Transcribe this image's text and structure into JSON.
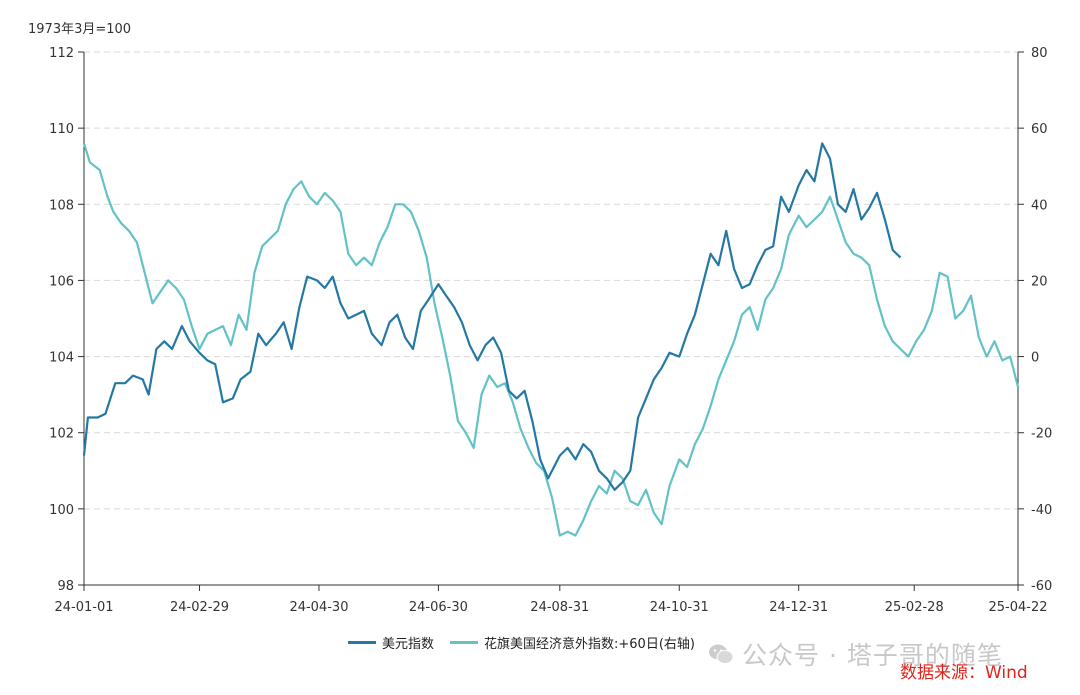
{
  "colors": {
    "usd": "#2478a3",
    "citi": "#62c2c7",
    "grid": "#d9d9d9",
    "axis": "#333333",
    "source": "#e2231a"
  },
  "unit_label": "1973年3月=100",
  "watermark": "公众号 · 塔子哥的随笔",
  "watermark_icon": "wechat-icon",
  "source_label": "数据来源：Wind",
  "chart_data": {
    "type": "line",
    "x_type": "date",
    "x_range": [
      "2024-01-01",
      "2025-04-22"
    ],
    "xticks": [
      "2024-01-01",
      "2024-02-29",
      "2024-04-30",
      "2024-06-30",
      "2024-08-31",
      "2024-10-31",
      "2024-12-31",
      "2025-02-28",
      "2025-04-22"
    ],
    "xtick_labels": [
      "24-01-01",
      "24-02-29",
      "24-04-30",
      "24-06-30",
      "24-08-31",
      "24-10-31",
      "24-12-31",
      "25-02-28",
      "25-04-22"
    ],
    "ylim_left": [
      98,
      112
    ],
    "yticks_left": [
      98,
      100,
      102,
      104,
      106,
      108,
      110,
      112
    ],
    "ylim_right": [
      -60,
      80
    ],
    "yticks_right": [
      -60,
      -40,
      -20,
      0,
      20,
      40,
      60,
      80
    ],
    "grid": "horizontal dashed",
    "legend_position": "bottom",
    "series": [
      {
        "name": "美元指数",
        "axis": "left",
        "points": [
          [
            "2024-01-01",
            101.4
          ],
          [
            "2024-01-03",
            102.4
          ],
          [
            "2024-01-08",
            102.4
          ],
          [
            "2024-01-12",
            102.5
          ],
          [
            "2024-01-17",
            103.3
          ],
          [
            "2024-01-22",
            103.3
          ],
          [
            "2024-01-26",
            103.5
          ],
          [
            "2024-01-31",
            103.4
          ],
          [
            "2024-02-03",
            103.0
          ],
          [
            "2024-02-07",
            104.2
          ],
          [
            "2024-02-11",
            104.4
          ],
          [
            "2024-02-15",
            104.2
          ],
          [
            "2024-02-20",
            104.8
          ],
          [
            "2024-02-24",
            104.4
          ],
          [
            "2024-02-29",
            104.1
          ],
          [
            "2024-03-04",
            103.9
          ],
          [
            "2024-03-08",
            103.8
          ],
          [
            "2024-03-12",
            102.8
          ],
          [
            "2024-03-17",
            102.9
          ],
          [
            "2024-03-21",
            103.4
          ],
          [
            "2024-03-26",
            103.6
          ],
          [
            "2024-03-30",
            104.6
          ],
          [
            "2024-04-03",
            104.3
          ],
          [
            "2024-04-08",
            104.6
          ],
          [
            "2024-04-12",
            104.9
          ],
          [
            "2024-04-16",
            104.2
          ],
          [
            "2024-04-20",
            105.3
          ],
          [
            "2024-04-24",
            106.1
          ],
          [
            "2024-04-29",
            106.0
          ],
          [
            "2024-05-03",
            105.8
          ],
          [
            "2024-05-07",
            106.1
          ],
          [
            "2024-05-11",
            105.4
          ],
          [
            "2024-05-15",
            105.0
          ],
          [
            "2024-05-19",
            105.1
          ],
          [
            "2024-05-23",
            105.2
          ],
          [
            "2024-05-27",
            104.6
          ],
          [
            "2024-06-01",
            104.3
          ],
          [
            "2024-06-05",
            104.9
          ],
          [
            "2024-06-09",
            105.1
          ],
          [
            "2024-06-13",
            104.5
          ],
          [
            "2024-06-17",
            104.2
          ],
          [
            "2024-06-21",
            105.2
          ],
          [
            "2024-06-25",
            105.5
          ],
          [
            "2024-06-30",
            105.9
          ],
          [
            "2024-07-04",
            105.6
          ],
          [
            "2024-07-08",
            105.3
          ],
          [
            "2024-07-12",
            104.9
          ],
          [
            "2024-07-16",
            104.3
          ],
          [
            "2024-07-20",
            103.9
          ],
          [
            "2024-07-24",
            104.3
          ],
          [
            "2024-07-28",
            104.5
          ],
          [
            "2024-08-01",
            104.1
          ],
          [
            "2024-08-05",
            103.1
          ],
          [
            "2024-08-09",
            102.9
          ],
          [
            "2024-08-13",
            103.1
          ],
          [
            "2024-08-17",
            102.3
          ],
          [
            "2024-08-21",
            101.3
          ],
          [
            "2024-08-25",
            100.8
          ],
          [
            "2024-08-31",
            101.4
          ],
          [
            "2024-09-04",
            101.6
          ],
          [
            "2024-09-08",
            101.3
          ],
          [
            "2024-09-12",
            101.7
          ],
          [
            "2024-09-16",
            101.5
          ],
          [
            "2024-09-20",
            101.0
          ],
          [
            "2024-09-24",
            100.8
          ],
          [
            "2024-09-28",
            100.5
          ],
          [
            "2024-10-02",
            100.7
          ],
          [
            "2024-10-06",
            101.0
          ],
          [
            "2024-10-10",
            102.4
          ],
          [
            "2024-10-14",
            102.9
          ],
          [
            "2024-10-18",
            103.4
          ],
          [
            "2024-10-22",
            103.7
          ],
          [
            "2024-10-26",
            104.1
          ],
          [
            "2024-10-31",
            104.0
          ],
          [
            "2024-11-04",
            104.6
          ],
          [
            "2024-11-08",
            105.1
          ],
          [
            "2024-11-12",
            105.9
          ],
          [
            "2024-11-16",
            106.7
          ],
          [
            "2024-11-20",
            106.4
          ],
          [
            "2024-11-24",
            107.3
          ],
          [
            "2024-11-28",
            106.3
          ],
          [
            "2024-12-02",
            105.8
          ],
          [
            "2024-12-06",
            105.9
          ],
          [
            "2024-12-10",
            106.4
          ],
          [
            "2024-12-14",
            106.8
          ],
          [
            "2024-12-18",
            106.9
          ],
          [
            "2024-12-22",
            108.2
          ],
          [
            "2024-12-26",
            107.8
          ],
          [
            "2024-12-31",
            108.5
          ],
          [
            "2025-01-04",
            108.9
          ],
          [
            "2025-01-08",
            108.6
          ],
          [
            "2025-01-12",
            109.6
          ],
          [
            "2025-01-16",
            109.2
          ],
          [
            "2025-01-20",
            108.0
          ],
          [
            "2025-01-24",
            107.8
          ],
          [
            "2025-01-28",
            108.4
          ],
          [
            "2025-02-01",
            107.6
          ],
          [
            "2025-02-05",
            107.9
          ],
          [
            "2025-02-09",
            108.3
          ],
          [
            "2025-02-13",
            107.6
          ],
          [
            "2025-02-17",
            106.8
          ],
          [
            "2025-02-21",
            106.6
          ]
        ]
      },
      {
        "name": "花旗美国经济意外指数:+60日(右轴)",
        "axis": "right",
        "points": [
          [
            "2024-01-01",
            56
          ],
          [
            "2024-01-04",
            51
          ],
          [
            "2024-01-09",
            49
          ],
          [
            "2024-01-13",
            42
          ],
          [
            "2024-01-16",
            38
          ],
          [
            "2024-01-20",
            35
          ],
          [
            "2024-01-24",
            33
          ],
          [
            "2024-01-28",
            30
          ],
          [
            "2024-02-01",
            22
          ],
          [
            "2024-02-05",
            14
          ],
          [
            "2024-02-09",
            17
          ],
          [
            "2024-02-13",
            20
          ],
          [
            "2024-02-17",
            18
          ],
          [
            "2024-02-21",
            15
          ],
          [
            "2024-02-25",
            8
          ],
          [
            "2024-02-29",
            2
          ],
          [
            "2024-03-04",
            6
          ],
          [
            "2024-03-08",
            7
          ],
          [
            "2024-03-12",
            8
          ],
          [
            "2024-03-16",
            3
          ],
          [
            "2024-03-20",
            11
          ],
          [
            "2024-03-24",
            7
          ],
          [
            "2024-03-28",
            22
          ],
          [
            "2024-04-01",
            29
          ],
          [
            "2024-04-05",
            31
          ],
          [
            "2024-04-09",
            33
          ],
          [
            "2024-04-13",
            40
          ],
          [
            "2024-04-17",
            44
          ],
          [
            "2024-04-21",
            46
          ],
          [
            "2024-04-25",
            42
          ],
          [
            "2024-04-29",
            40
          ],
          [
            "2024-05-03",
            43
          ],
          [
            "2024-05-07",
            41
          ],
          [
            "2024-05-11",
            38
          ],
          [
            "2024-05-15",
            27
          ],
          [
            "2024-05-19",
            24
          ],
          [
            "2024-05-23",
            26
          ],
          [
            "2024-05-27",
            24
          ],
          [
            "2024-05-31",
            30
          ],
          [
            "2024-06-04",
            34
          ],
          [
            "2024-06-08",
            40
          ],
          [
            "2024-06-12",
            40
          ],
          [
            "2024-06-16",
            38
          ],
          [
            "2024-06-20",
            33
          ],
          [
            "2024-06-24",
            26
          ],
          [
            "2024-06-28",
            14
          ],
          [
            "2024-07-02",
            5
          ],
          [
            "2024-07-06",
            -5
          ],
          [
            "2024-07-10",
            -17
          ],
          [
            "2024-07-14",
            -20
          ],
          [
            "2024-07-18",
            -24
          ],
          [
            "2024-07-22",
            -10
          ],
          [
            "2024-07-26",
            -5
          ],
          [
            "2024-07-30",
            -8
          ],
          [
            "2024-08-03",
            -7
          ],
          [
            "2024-08-07",
            -12
          ],
          [
            "2024-08-11",
            -19
          ],
          [
            "2024-08-15",
            -24
          ],
          [
            "2024-08-19",
            -28
          ],
          [
            "2024-08-23",
            -30
          ],
          [
            "2024-08-27",
            -37
          ],
          [
            "2024-08-31",
            -47
          ],
          [
            "2024-09-04",
            -46
          ],
          [
            "2024-09-08",
            -47
          ],
          [
            "2024-09-12",
            -43
          ],
          [
            "2024-09-16",
            -38
          ],
          [
            "2024-09-20",
            -34
          ],
          [
            "2024-09-24",
            -36
          ],
          [
            "2024-09-28",
            -30
          ],
          [
            "2024-10-02",
            -32
          ],
          [
            "2024-10-06",
            -38
          ],
          [
            "2024-10-10",
            -39
          ],
          [
            "2024-10-14",
            -35
          ],
          [
            "2024-10-18",
            -41
          ],
          [
            "2024-10-22",
            -44
          ],
          [
            "2024-10-26",
            -34
          ],
          [
            "2024-10-31",
            -27
          ],
          [
            "2024-11-04",
            -29
          ],
          [
            "2024-11-08",
            -23
          ],
          [
            "2024-11-12",
            -19
          ],
          [
            "2024-11-16",
            -13
          ],
          [
            "2024-11-20",
            -6
          ],
          [
            "2024-11-24",
            -1
          ],
          [
            "2024-11-28",
            4
          ],
          [
            "2024-12-02",
            11
          ],
          [
            "2024-12-06",
            13
          ],
          [
            "2024-12-10",
            7
          ],
          [
            "2024-12-14",
            15
          ],
          [
            "2024-12-18",
            18
          ],
          [
            "2024-12-22",
            23
          ],
          [
            "2024-12-26",
            32
          ],
          [
            "2024-12-31",
            37
          ],
          [
            "2025-01-04",
            34
          ],
          [
            "2025-01-08",
            36
          ],
          [
            "2025-01-12",
            38
          ],
          [
            "2025-01-16",
            42
          ],
          [
            "2025-01-20",
            36
          ],
          [
            "2025-01-24",
            30
          ],
          [
            "2025-01-28",
            27
          ],
          [
            "2025-02-01",
            26
          ],
          [
            "2025-02-05",
            24
          ],
          [
            "2025-02-09",
            15
          ],
          [
            "2025-02-13",
            8
          ],
          [
            "2025-02-17",
            4
          ],
          [
            "2025-02-21",
            2
          ],
          [
            "2025-02-25",
            0
          ],
          [
            "2025-03-01",
            4
          ],
          [
            "2025-03-05",
            7
          ],
          [
            "2025-03-09",
            12
          ],
          [
            "2025-03-13",
            22
          ],
          [
            "2025-03-17",
            21
          ],
          [
            "2025-03-21",
            10
          ],
          [
            "2025-03-25",
            12
          ],
          [
            "2025-03-29",
            16
          ],
          [
            "2025-04-02",
            5
          ],
          [
            "2025-04-06",
            0
          ],
          [
            "2025-04-10",
            4
          ],
          [
            "2025-04-14",
            -1
          ],
          [
            "2025-04-18",
            0
          ],
          [
            "2025-04-22",
            -8
          ]
        ]
      }
    ]
  }
}
